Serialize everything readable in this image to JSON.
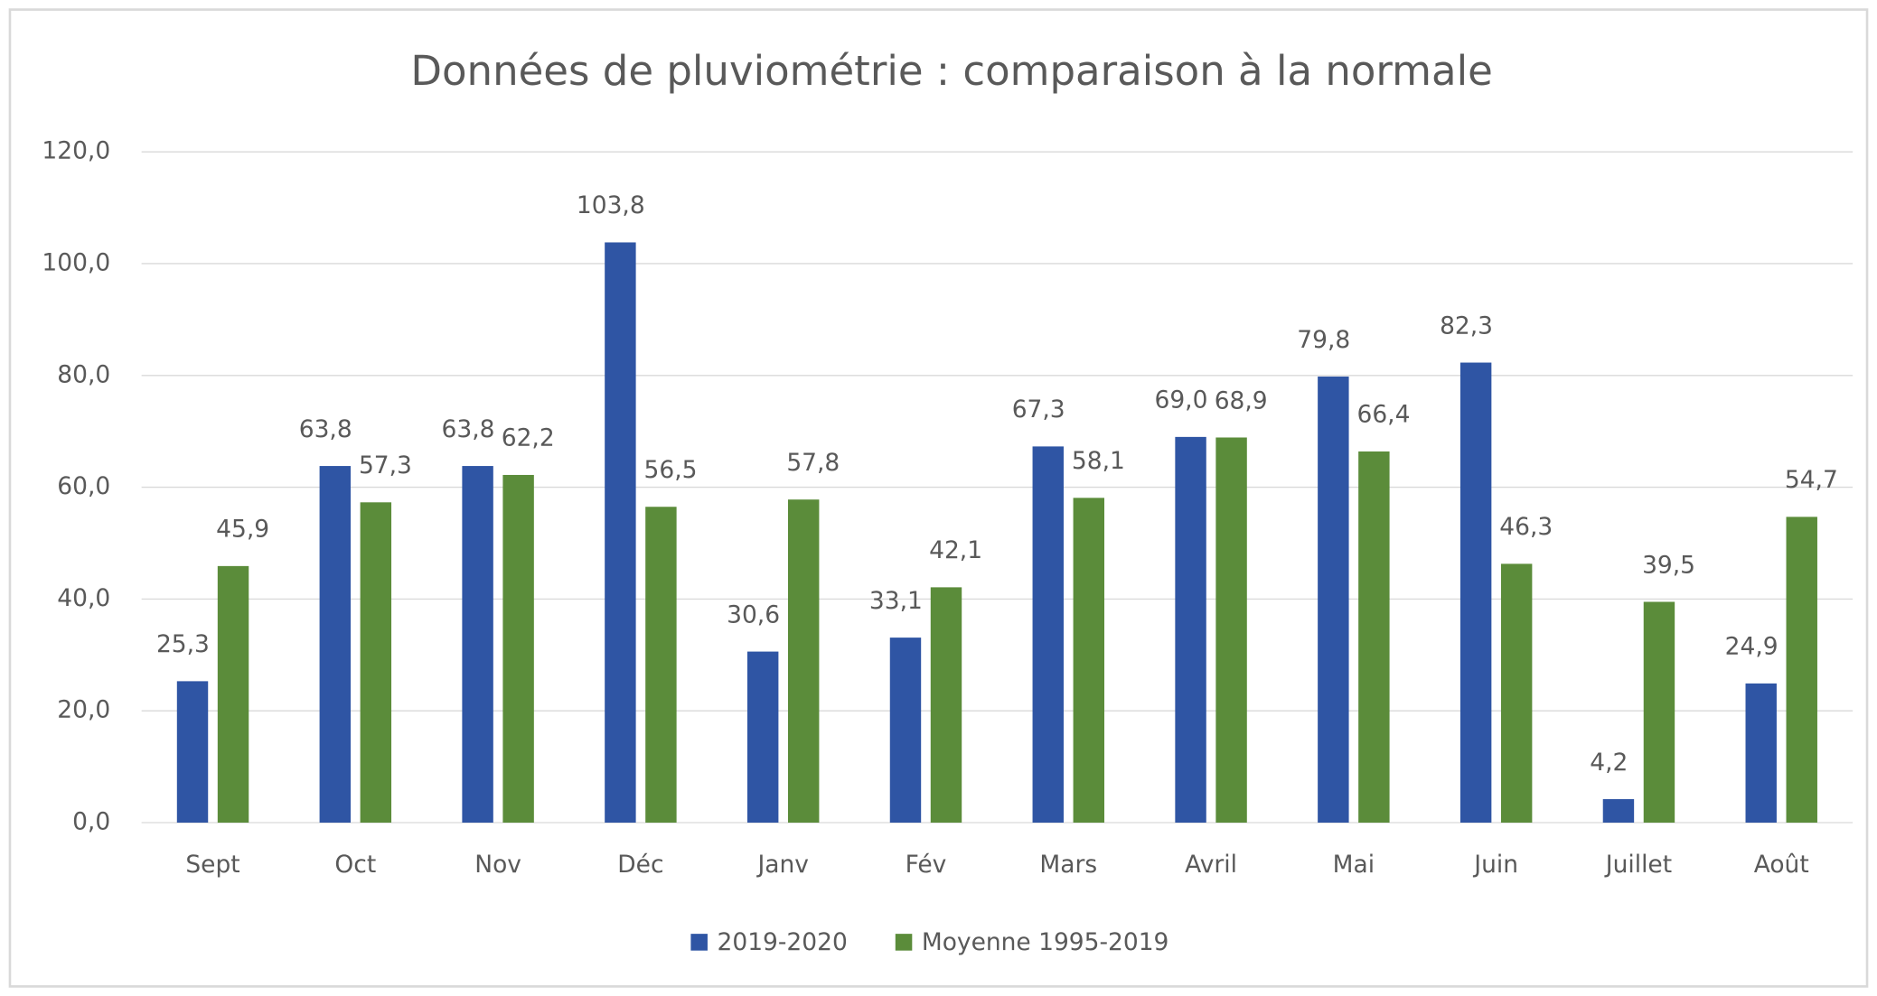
{
  "chart_data": {
    "type": "bar",
    "title": "Données de pluviométrie : comparaison à la normale",
    "categories": [
      "Sept",
      "Oct",
      "Nov",
      "Déc",
      "Janv",
      "Fév",
      "Mars",
      "Avril",
      "Mai",
      "Juin",
      "Juillet",
      "Août"
    ],
    "series": [
      {
        "name": "2019-2020",
        "color": "#2f55a4",
        "values": [
          25.3,
          63.8,
          63.8,
          103.8,
          30.6,
          33.1,
          67.3,
          69.0,
          79.8,
          82.3,
          4.2,
          24.9
        ],
        "value_labels": [
          "25,3",
          "63,8",
          "63,8",
          "103,8",
          "30,6",
          "33,1",
          "67,3",
          "69,0",
          "79,8",
          "82,3",
          "4,2",
          "24,9"
        ]
      },
      {
        "name": "Moyenne 1995-2019",
        "color": "#5b8c3a",
        "values": [
          45.9,
          57.3,
          62.2,
          56.5,
          57.8,
          42.1,
          58.1,
          68.9,
          66.4,
          46.3,
          39.5,
          54.7
        ],
        "value_labels": [
          "45,9",
          "57,3",
          "62,2",
          "56,5",
          "57,8",
          "42,1",
          "58,1",
          "68,9",
          "66,4",
          "46,3",
          "39,5",
          "54,7"
        ]
      }
    ],
    "ylim": [
      0,
      120
    ],
    "yticks": [
      {
        "value": 0,
        "label": "0,0"
      },
      {
        "value": 20,
        "label": "20,0"
      },
      {
        "value": 40,
        "label": "40,0"
      },
      {
        "value": 60,
        "label": "60,0"
      },
      {
        "value": 80,
        "label": "80,0"
      },
      {
        "value": 100,
        "label": "100,0"
      },
      {
        "value": 120,
        "label": "120,0"
      }
    ],
    "grid": true,
    "legend": "bottom"
  }
}
